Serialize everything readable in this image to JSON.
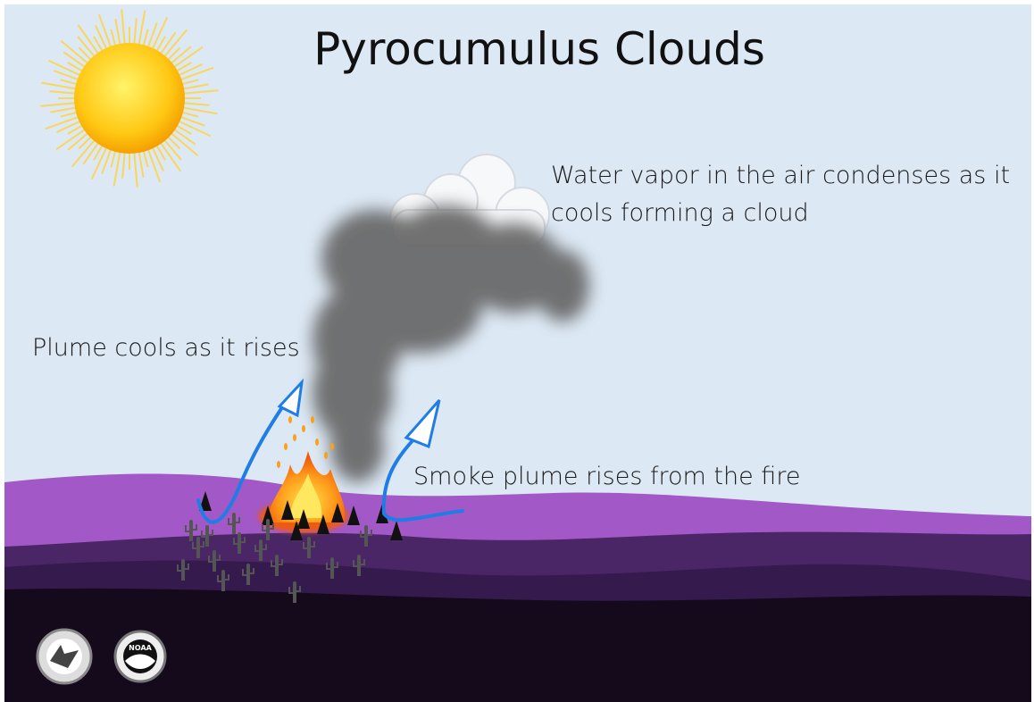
{
  "title": "Pyrocumulus Clouds",
  "labels": {
    "cloud": [
      "Water vapor in the air condenses as it",
      "cools forming a cloud"
    ],
    "plume_cools": "Plume cools as it rises",
    "smoke_rises": "Smoke plume rises from the fire"
  },
  "logos": {
    "noaa": "NOAA"
  }
}
